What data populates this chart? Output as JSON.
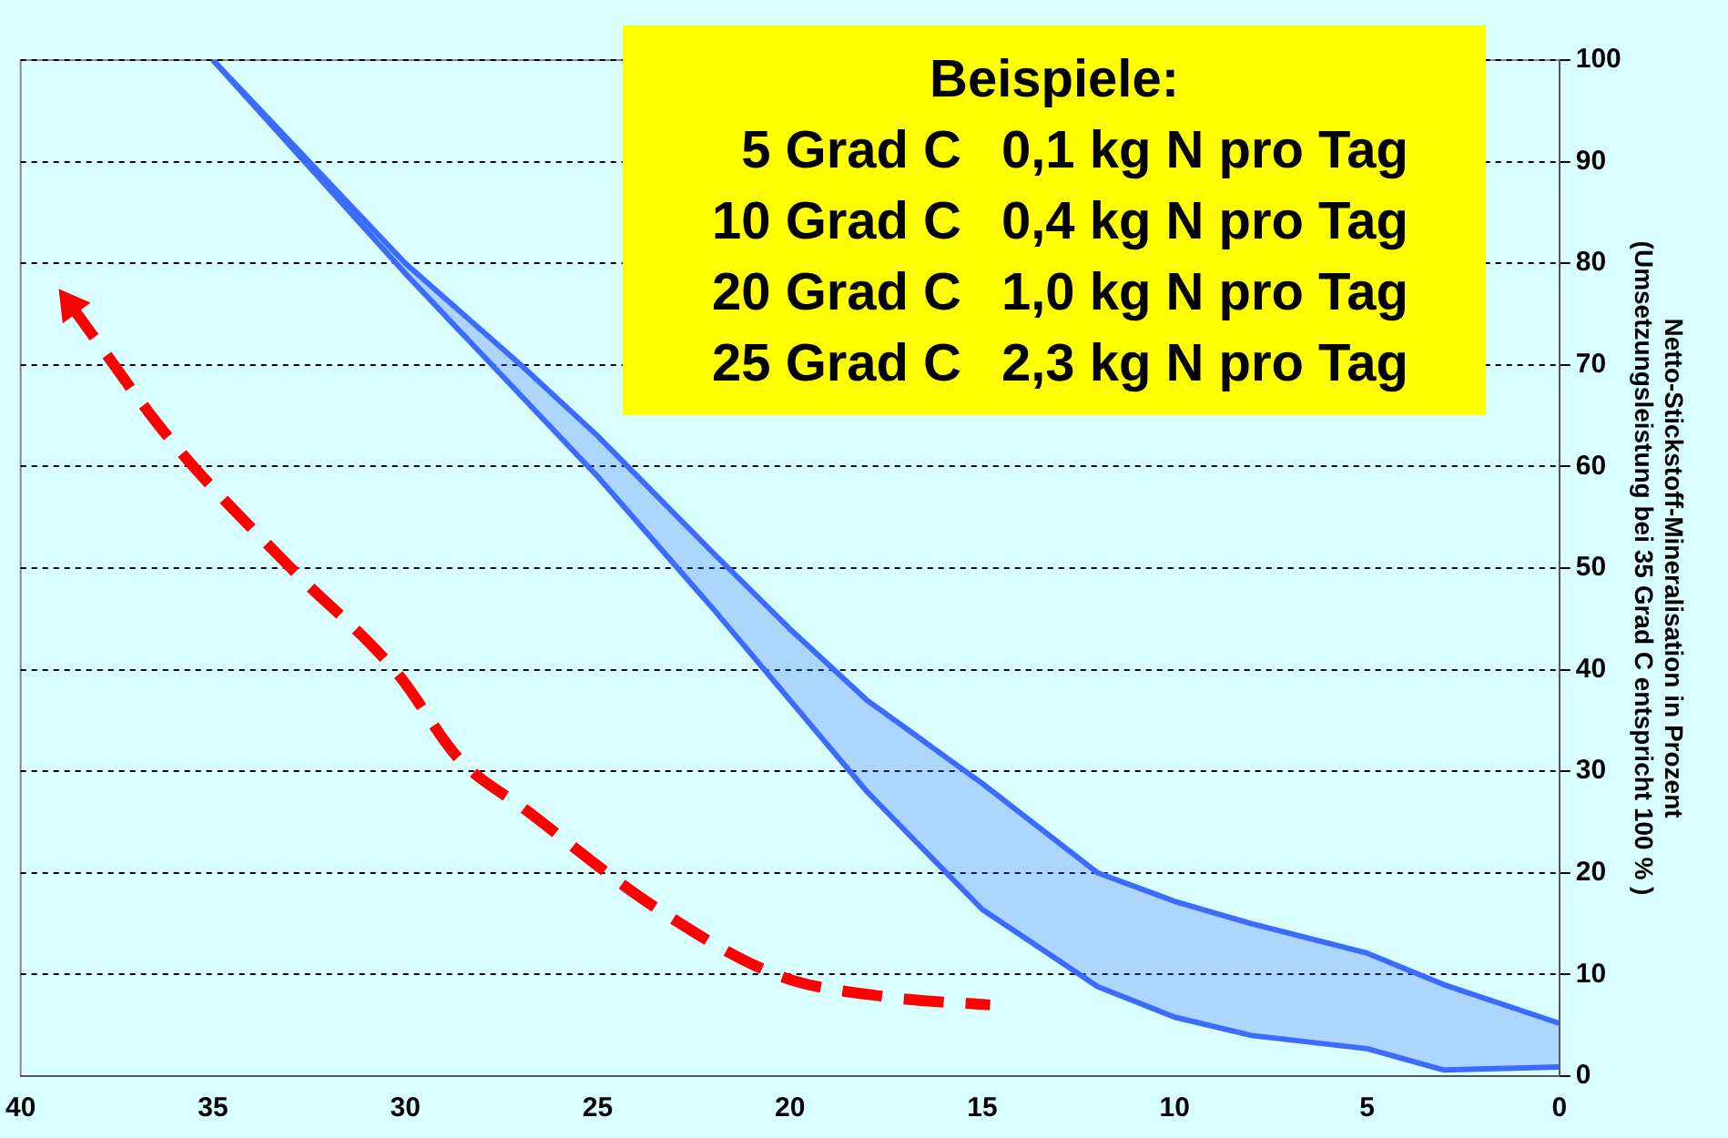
{
  "chart_data": {
    "type": "line",
    "ylabel": "Netto-Stickstoff-Mineralisation in Prozent\n(Umsetzungsleistung bei 35 Grad C entspricht 100 % )",
    "annotations": [
      "Beispiele:",
      "5 Grad C   0,1 kg N pro Tag",
      "10 Grad C   0,4 kg N pro Tag",
      "20 Grad C   1,0 kg N pro Tag",
      "25 Grad C   2,3 kg N pro Tag"
    ],
    "xlim": [
      40,
      0
    ],
    "xticks": [
      40,
      35,
      30,
      25,
      20,
      15,
      10,
      5,
      0
    ],
    "ylim": [
      0,
      100
    ],
    "yticks": [
      0,
      10,
      20,
      30,
      40,
      50,
      60,
      70,
      80,
      90,
      100
    ],
    "grid": "y",
    "legend": false,
    "marker": "none",
    "series": [
      {
        "color": "#3d6bff",
        "line_style": "solid",
        "x": [
          35,
          30,
          27,
          25,
          22,
          20,
          18,
          15,
          12,
          10,
          8,
          5,
          3,
          0
        ],
        "values": [
          100,
          80,
          70,
          63,
          51.5,
          44,
          37,
          28.8,
          20,
          17.2,
          15,
          12.1,
          9,
          5.2
        ],
        "upper": [
          100,
          80,
          70,
          63,
          51.5,
          44,
          37,
          28.8,
          20,
          17.2,
          15,
          12.1,
          9,
          5.2
        ],
        "lower": [
          100,
          79,
          67,
          59,
          46,
          37,
          28,
          16.4,
          8.8,
          5.8,
          4,
          2.7,
          0.6,
          0.9
        ]
      },
      {
        "color": "#3d6bff",
        "line_style": "solid",
        "x": [
          35,
          30,
          27,
          25,
          22,
          20,
          18,
          15,
          12,
          10,
          8,
          5,
          3,
          0
        ],
        "values": [
          100,
          79,
          67,
          59,
          46,
          37,
          28,
          16.4,
          8.8,
          5.8,
          4,
          2.7,
          0.6,
          0.9
        ]
      },
      {
        "color": "#ff0000",
        "line_style": "dashed",
        "x": [
          38.7,
          36.1,
          33,
          30.2,
          28.6,
          26.9,
          23.5,
          20.3,
          17.5,
          14.8
        ],
        "values": [
          75.9,
          62.6,
          50.1,
          39.6,
          31.2,
          26.3,
          16.6,
          9.9,
          7.8,
          7
        ]
      }
    ]
  }
}
